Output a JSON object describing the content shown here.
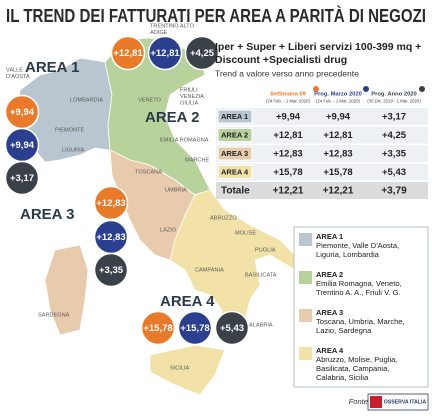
{
  "header": {
    "title": "IL TREND DEI FATTURATI PER AREA A PARITÀ DI NEGOZI"
  },
  "subtitle": {
    "lines": [
      "Iper + Super + Liberi servizi 100-399 mq +",
      "Discount +Specialisti drug"
    ],
    "note": "Trend a valore verso anno precedente"
  },
  "table": {
    "columns": [
      {
        "title": "Settimana 09",
        "period": "(24 Feb. - 1 Mar. 2020)"
      },
      {
        "title": "Prog. Marzo 2020",
        "period": "(24 Feb. - 1 Mar. 2020)"
      },
      {
        "title": "Prog. Anno 2020",
        "period": "(30 Dic. 2019 - 1 Mar. 2020)"
      }
    ],
    "rows": [
      [
        "AREA 1",
        "+9,94",
        "+9,94",
        "+3,17"
      ],
      [
        "AREA 2",
        "+12,81",
        "+12,81",
        "+4,25"
      ],
      [
        "AREA 3",
        "+12,83",
        "+12,83",
        "+3,35"
      ],
      [
        "AREA 4",
        "+15,78",
        "+15,78",
        "+5,43"
      ],
      [
        "Totale",
        "+12,21",
        "+12,21",
        "+3,79"
      ]
    ]
  },
  "map": {
    "areas": [
      {
        "label": "AREA 1",
        "values": [
          "+9,94",
          "+9,94",
          "+3,17"
        ]
      },
      {
        "label": "AREA 2",
        "values": [
          "+12,81",
          "+12,81",
          "+4,25"
        ]
      },
      {
        "label": "AREA 3",
        "values": [
          "+12,83",
          "+12,83",
          "+3,35"
        ]
      },
      {
        "label": "AREA 4",
        "values": [
          "+15,78",
          "+15,78",
          "+5,43"
        ]
      }
    ],
    "regions": [
      {
        "lines": [
          "TRENTINO ALTO",
          "ADIGE"
        ]
      },
      {
        "lines": [
          "VALLE",
          "D'AOSTA"
        ]
      },
      {
        "lines": [
          "LOMBARDIA"
        ]
      },
      {
        "lines": [
          "FRIULI",
          "VENEZIA",
          "GIULIA"
        ]
      },
      {
        "lines": [
          "VENETO"
        ]
      },
      {
        "lines": [
          "PIEMONTE"
        ]
      },
      {
        "lines": [
          "EMILIA ROMAGNA"
        ]
      },
      {
        "lines": [
          "LIGURIA"
        ]
      },
      {
        "lines": [
          "MARCHE"
        ]
      },
      {
        "lines": [
          "TOSCANA"
        ]
      },
      {
        "lines": [
          "UMBRIA"
        ]
      },
      {
        "lines": [
          "LAZIO"
        ]
      },
      {
        "lines": [
          "ABRUZZO"
        ]
      },
      {
        "lines": [
          "MOLISE"
        ]
      },
      {
        "lines": [
          "PUGLIA"
        ]
      },
      {
        "lines": [
          "SARDEGNA"
        ]
      },
      {
        "lines": [
          "CAMPANIA"
        ]
      },
      {
        "lines": [
          "BASILICATA"
        ]
      },
      {
        "lines": [
          "CALABRIA"
        ]
      },
      {
        "lines": [
          "SICILIA"
        ]
      }
    ]
  },
  "legend": {
    "items": [
      {
        "label": "AREA 1",
        "lines": [
          "Piemonte, Valle D'Aosta,",
          "Liguria, Lombardia"
        ]
      },
      {
        "label": "AREA 2",
        "lines": [
          "Emilia Romagna, Veneto,",
          "Trentino A. A., Friuli V. G."
        ]
      },
      {
        "label": "AREA 3",
        "lines": [
          "Toscana, Umbria, Marche,",
          "Lazio, Sardegna"
        ]
      },
      {
        "label": "AREA 4",
        "lines": [
          "Abruzzo, Molise, Puglia,",
          "Basilicata, Campania,",
          "Calabria, Sicilia"
        ]
      }
    ]
  },
  "footer": {
    "source": "Fonte Nielsen",
    "logo": "OSSERVA ITALIA"
  }
}
